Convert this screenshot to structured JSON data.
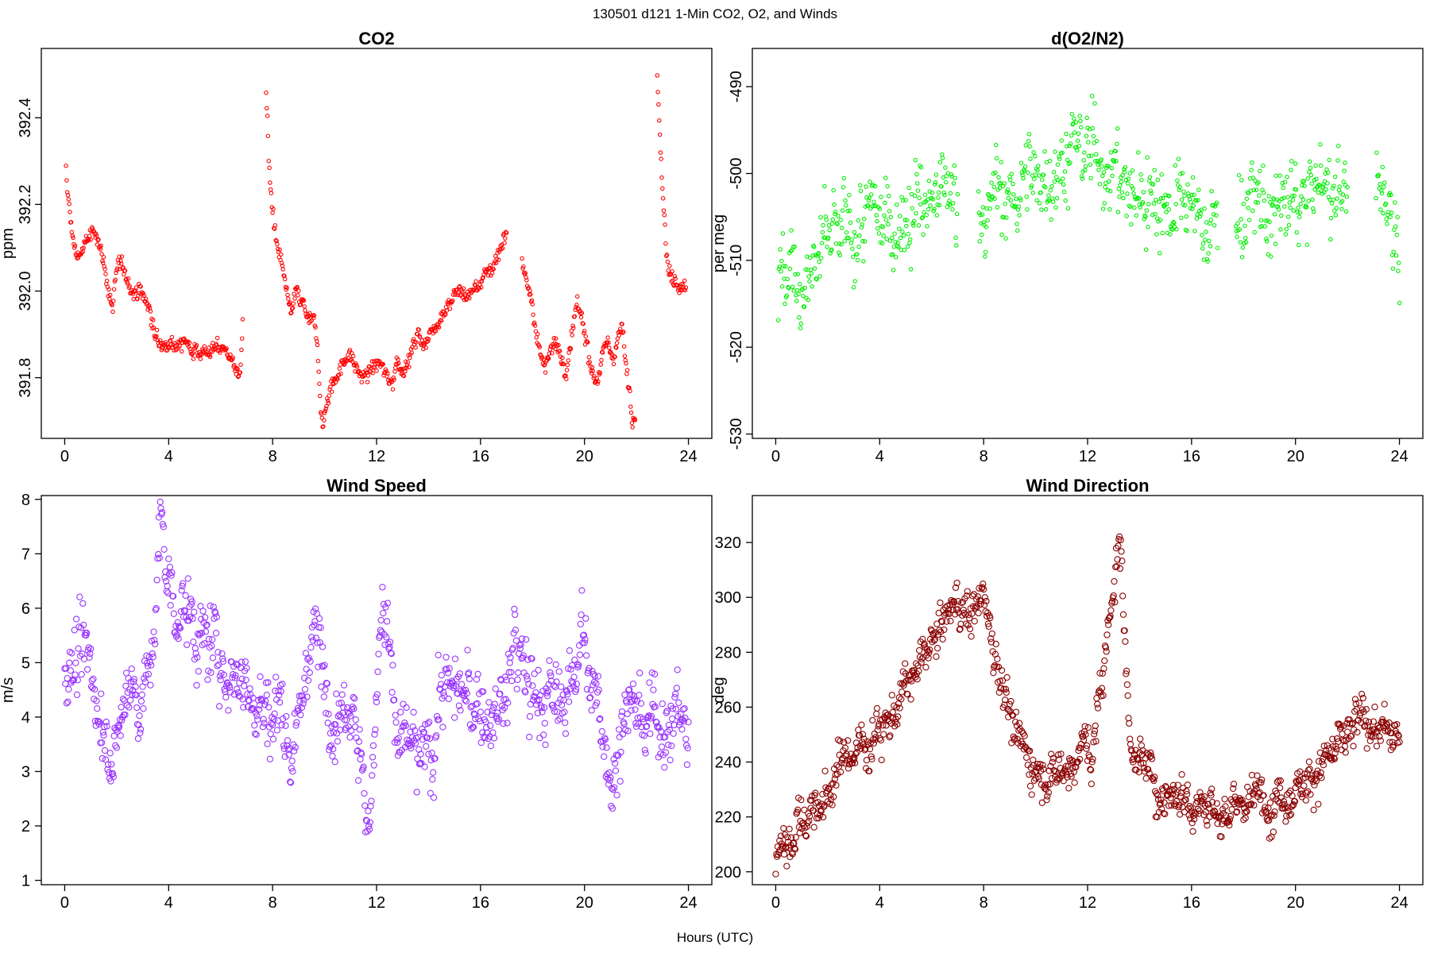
{
  "figure": {
    "title": "130501   d121   1-Min CO2, O2, and Winds",
    "xlabel": "Hours (UTC)"
  },
  "chart_data": [
    {
      "id": "co2",
      "type": "scatter",
      "title": "CO2",
      "xlabel": "",
      "ylabel": "ppm",
      "xlim": [
        -0.9,
        24.9
      ],
      "ylim": [
        391.66,
        392.56
      ],
      "xticks": [
        0,
        4,
        8,
        12,
        16,
        20,
        24
      ],
      "yticks": [
        391.8,
        392.0,
        392.2,
        392.4
      ],
      "ytick_labels": [
        "391.8",
        "392.0",
        "392.2",
        "392.4"
      ],
      "ytick_rotated": true,
      "color": "#ff0000",
      "marker_size": 2.2,
      "points_per_hour": 40,
      "series": [
        {
          "x": [
            0.05,
            0.1,
            0.2,
            0.35,
            0.5,
            0.7,
            0.9,
            1.1,
            1.3,
            1.45,
            1.55,
            1.7,
            1.85,
            2.05,
            2.3,
            2.5,
            2.7,
            2.9,
            3.1,
            3.3,
            3.45,
            3.6,
            3.8,
            4.0,
            4.3,
            4.6,
            5.0,
            5.5,
            6.0,
            6.4,
            6.6,
            6.75,
            6.85
          ],
          "y": [
            392.28,
            392.22,
            392.18,
            392.1,
            392.08,
            392.1,
            392.12,
            392.13,
            392.12,
            392.09,
            392.05,
            392.0,
            391.96,
            392.06,
            392.04,
            392.02,
            392.0,
            392.0,
            391.98,
            391.95,
            391.9,
            391.88,
            391.87,
            391.9,
            391.88,
            391.88,
            391.87,
            391.86,
            391.87,
            391.85,
            391.82,
            391.8,
            391.92
          ]
        },
        {
          "x": [
            7.75,
            7.8,
            7.85,
            7.95,
            8.05,
            8.15,
            8.3,
            8.45,
            8.6,
            8.75,
            8.9,
            9.05,
            9.2,
            9.4,
            9.6,
            9.75,
            9.85,
            9.95,
            10.1,
            10.3,
            10.6,
            10.9,
            11.2,
            11.5,
            11.8,
            12.1,
            12.4,
            12.6,
            12.8,
            13.0,
            13.3,
            13.6,
            13.9,
            14.2,
            14.5,
            14.8,
            15.1,
            15.4,
            15.7,
            16.0,
            16.3,
            16.5,
            16.7,
            16.85,
            17.0
          ],
          "y": [
            392.45,
            392.4,
            392.3,
            392.22,
            392.16,
            392.1,
            392.07,
            392.02,
            391.96,
            391.95,
            392.0,
            391.97,
            391.96,
            391.93,
            391.92,
            391.85,
            391.74,
            391.7,
            391.75,
            391.79,
            391.82,
            391.86,
            391.82,
            391.8,
            391.82,
            391.83,
            391.8,
            391.79,
            391.85,
            391.82,
            391.85,
            391.9,
            391.88,
            391.92,
            391.95,
            391.98,
            392.0,
            391.99,
            392.0,
            392.02,
            392.05,
            392.06,
            392.09,
            392.12,
            392.14
          ]
        },
        {
          "x": [
            17.6,
            17.7,
            17.85,
            18.0,
            18.15,
            18.3,
            18.5,
            18.7,
            18.9,
            19.1,
            19.3,
            19.5,
            19.7,
            19.9,
            20.1,
            20.3,
            20.5,
            20.7,
            20.9,
            21.1,
            21.3,
            21.45,
            21.6,
            21.75,
            21.85,
            21.95
          ],
          "y": [
            392.06,
            392.05,
            392.0,
            391.95,
            391.9,
            391.85,
            391.82,
            391.88,
            391.9,
            391.84,
            391.8,
            391.88,
            391.96,
            391.93,
            391.88,
            391.82,
            391.8,
            391.86,
            391.87,
            391.85,
            391.9,
            391.92,
            391.82,
            391.76,
            391.7,
            391.72
          ]
        },
        {
          "x": [
            22.8,
            22.85,
            22.95,
            23.05,
            23.15,
            23.25,
            23.35,
            23.5,
            23.65,
            23.8,
            23.9
          ],
          "y": [
            392.52,
            392.45,
            392.3,
            392.2,
            392.1,
            392.05,
            392.03,
            392.03,
            392.02,
            392.02,
            392.03
          ]
        }
      ]
    },
    {
      "id": "o2",
      "type": "scatter",
      "title": "d(O2/N2)",
      "xlabel": "",
      "ylabel": "per meg",
      "xlim": [
        -0.9,
        24.9
      ],
      "ylim": [
        -530.5,
        -485.6
      ],
      "xticks": [
        0,
        4,
        8,
        12,
        16,
        20,
        24
      ],
      "yticks": [
        -530,
        -520,
        -510,
        -500,
        -490
      ],
      "ytick_labels": [
        "-530",
        "-520",
        "-510",
        "-500",
        "-490"
      ],
      "ytick_rotated": true,
      "color": "#00ee00",
      "marker_size": 2.2,
      "points_per_hour": 40,
      "series": [
        {
          "x": [
            0.1,
            0.5,
            1.0,
            1.5,
            2.0,
            2.5,
            3.0,
            3.5,
            4.0,
            4.5,
            5.0,
            5.5,
            6.0,
            6.5,
            7.0
          ],
          "y": [
            -514,
            -513,
            -512,
            -511,
            -509,
            -508,
            -507,
            -506,
            -506,
            -505,
            -504,
            -504,
            -504,
            -503,
            -503
          ]
        },
        {
          "x": [
            7.8,
            8.2,
            8.6,
            9.0,
            9.4,
            9.8,
            10.2,
            10.6,
            11.0,
            11.4,
            11.8,
            12.2,
            12.6,
            13.0,
            13.4,
            13.8,
            14.2,
            14.6,
            15.0,
            15.4,
            15.8,
            16.2,
            16.6,
            17.0
          ],
          "y": [
            -504,
            -504,
            -503,
            -503,
            -502,
            -501,
            -500,
            -499,
            -498,
            -498,
            -498,
            -498,
            -497,
            -500,
            -502,
            -503,
            -502,
            -502,
            -503,
            -504,
            -505,
            -505,
            -506,
            -506
          ]
        },
        {
          "x": [
            17.7,
            18.0,
            18.5,
            19.0,
            19.5,
            20.0,
            20.5,
            21.0,
            21.5,
            22.0
          ],
          "y": [
            -504,
            -504,
            -504,
            -505,
            -505,
            -503,
            -503,
            -502,
            -502,
            -502
          ]
        },
        {
          "x": [
            23.1,
            23.4,
            23.7,
            24.0
          ],
          "y": [
            -500,
            -503,
            -505,
            -507
          ]
        }
      ]
    },
    {
      "id": "ws",
      "type": "scatter",
      "title": "Wind Speed",
      "xlabel": "",
      "ylabel": "m/s",
      "xlim": [
        -0.9,
        24.9
      ],
      "ylim": [
        0.92,
        8.07
      ],
      "xticks": [
        0,
        4,
        8,
        12,
        16,
        20,
        24
      ],
      "yticks": [
        1,
        2,
        3,
        4,
        5,
        6,
        7,
        8
      ],
      "ytick_labels": [
        "1",
        "2",
        "3",
        "4",
        "5",
        "6",
        "7",
        "8"
      ],
      "ytick_rotated": false,
      "color": "#9933ff",
      "marker_size": 3.6,
      "points_per_hour": 40,
      "series": [
        {
          "x": [
            0.0,
            0.5,
            1.0,
            1.3,
            1.6,
            1.8,
            2.0,
            2.2,
            2.5,
            2.8,
            3.0,
            3.3,
            3.5,
            3.6,
            3.7,
            3.8,
            4.0,
            4.3,
            4.7,
            5.0,
            5.5,
            6.0,
            6.5,
            7.0,
            7.5,
            8.0,
            8.3,
            8.6,
            8.9,
            9.2,
            9.4,
            9.6,
            9.8,
            10.0,
            10.4,
            10.8,
            11.0,
            11.2,
            11.35,
            11.5,
            11.7,
            11.9,
            12.1,
            12.25,
            12.35,
            12.5,
            12.7,
            12.9,
            13.1,
            13.4,
            13.7,
            14.0,
            14.2,
            14.4,
            14.7,
            15.0,
            15.5,
            16.0,
            16.5,
            17.0,
            17.3,
            17.6,
            18.0,
            18.5,
            19.0,
            19.5,
            19.7,
            19.9,
            20.1,
            20.3,
            20.6,
            20.9,
            21.1,
            21.4,
            21.7,
            22.0,
            22.3,
            22.6,
            23.0,
            23.5,
            24.0
          ],
          "y": [
            4.6,
            5.0,
            4.8,
            4.3,
            3.8,
            3.5,
            3.3,
            3.8,
            4.8,
            4.5,
            4.4,
            4.8,
            6.0,
            7.0,
            7.4,
            7.1,
            6.4,
            6.1,
            5.9,
            5.6,
            5.3,
            5.0,
            4.9,
            4.7,
            4.2,
            4.0,
            4.4,
            3.5,
            3.8,
            4.6,
            5.2,
            5.6,
            5.0,
            4.7,
            4.4,
            4.3,
            4.7,
            4.1,
            3.4,
            2.8,
            1.9,
            3.2,
            5.7,
            6.2,
            6.0,
            5.0,
            4.0,
            3.4,
            3.5,
            3.4,
            3.0,
            3.5,
            3.3,
            4.5,
            4.7,
            4.4,
            4.3,
            4.1,
            4.0,
            4.3,
            5.4,
            4.9,
            4.4,
            4.3,
            4.2,
            4.6,
            5.4,
            6.0,
            5.0,
            4.3,
            3.8,
            3.2,
            3.1,
            3.8,
            4.2,
            4.2,
            3.3,
            4.0,
            4.1,
            4.0,
            3.7
          ]
        }
      ]
    },
    {
      "id": "wd",
      "type": "scatter",
      "title": "Wind Direction",
      "xlabel": "",
      "ylabel": "deg",
      "xlim": [
        -0.9,
        24.9
      ],
      "ylim": [
        195.3,
        337.1
      ],
      "xticks": [
        0,
        4,
        8,
        12,
        16,
        20,
        24
      ],
      "yticks": [
        200,
        220,
        240,
        260,
        280,
        300,
        320
      ],
      "ytick_labels": [
        "200",
        "220",
        "240",
        "260",
        "280",
        "300",
        "320"
      ],
      "ytick_rotated": false,
      "color": "#8b0000",
      "marker_size": 3.6,
      "points_per_hour": 40,
      "series": [
        {
          "x": [
            0.0,
            0.2,
            0.5,
            1.0,
            1.5,
            2.0,
            2.5,
            3.0,
            3.5,
            4.0,
            4.5,
            5.0,
            5.5,
            6.0,
            6.5,
            6.8,
            7.2,
            7.5,
            7.7,
            8.0,
            8.3,
            8.6,
            8.9,
            9.2,
            9.6,
            10.0,
            10.5,
            11.0,
            11.4,
            11.7,
            11.9,
            12.1,
            12.3,
            12.5,
            12.7,
            12.9,
            13.1,
            13.3,
            13.4,
            13.6,
            13.9,
            14.2,
            14.6,
            15.0,
            15.5,
            16.0,
            16.5,
            16.8,
            17.0,
            17.5,
            18.0,
            18.5,
            19.0,
            19.5,
            20.0,
            20.5,
            21.0,
            21.5,
            22.0,
            22.5,
            23.0,
            23.5,
            24.0
          ],
          "y": [
            203,
            210,
            214,
            220,
            222,
            226,
            241,
            244,
            248,
            254,
            258,
            264,
            274,
            282,
            290,
            298,
            296,
            294,
            298,
            301,
            287,
            272,
            268,
            248,
            243,
            240,
            236,
            238,
            240,
            244,
            248,
            238,
            252,
            264,
            280,
            297,
            315,
            322,
            288,
            254,
            243,
            237,
            232,
            230,
            229,
            228,
            227,
            226,
            218,
            222,
            225,
            226,
            228,
            228,
            232,
            236,
            238,
            242,
            249,
            254,
            255,
            252,
            248
          ]
        }
      ]
    }
  ]
}
